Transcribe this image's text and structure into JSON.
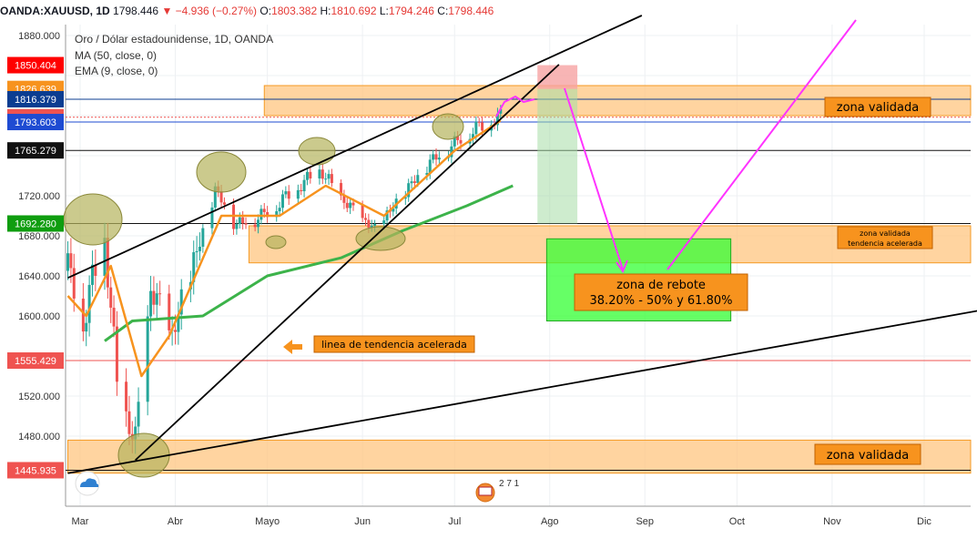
{
  "header": {
    "symbol": "OANDA:XAUUSD, 1D",
    "last": "1798.446",
    "change": "▼ −4.936 (−0.27%)",
    "o_label": "O:",
    "o": "1803.382",
    "h_label": "H:",
    "h": "1810.692",
    "l_label": "L:",
    "l": "1794.246",
    "c_label": "C:",
    "c": "1798.446"
  },
  "legend": {
    "title": "Oro / Dólar estadounidense, 1D, OANDA",
    "ma": "MA (50, close, 0)",
    "ema": "EMA (9, close, 0)"
  },
  "colors": {
    "up": "#26a69a",
    "down": "#ef5350",
    "ema": "#f7931e",
    "ma": "#3cb34a",
    "zone_fill": "#ffc680",
    "zone_border": "#f59a23",
    "box_fill": "#33ff33",
    "pink": "#ff33ff",
    "ellipse": "#b5b35c"
  },
  "badges": [
    {
      "value": "1850.404",
      "color": "#ff0000"
    },
    {
      "value": "1826.639",
      "color": "#f7931e"
    },
    {
      "value": "1816.379",
      "color": "#0b3d91"
    },
    {
      "value": "1798.446",
      "color": "#ef5350"
    },
    {
      "value": "1793.603",
      "color": "#1e4bd2"
    },
    {
      "value": "1765.279",
      "color": "#111111"
    },
    {
      "value": "1692.280",
      "color": "#0f9d0f"
    },
    {
      "value": "1555.429",
      "color": "#ef5350"
    },
    {
      "value": "1445.935",
      "color": "#ef5350"
    }
  ],
  "annotations": {
    "zona_validada_top": "zona validada",
    "zona_validada_mid_1": "zona validada",
    "zona_validada_mid_2": "tendencia acelerada",
    "zona_validada_bottom": "zona validada",
    "linea": "linea de tendencia acelerada",
    "rebote_1": "zona de rebote",
    "rebote_2": "38.20% - 50% y 61.80%",
    "event_count": "2 7 1"
  },
  "chart_data": {
    "type": "candlestick",
    "title": "Oro / Dólar estadounidense, 1D, OANDA",
    "ylim": [
      1420,
      1900
    ],
    "yticks": [
      1480,
      1520,
      1560,
      1600,
      1640,
      1680,
      1720,
      1760,
      1800,
      1840,
      1880
    ],
    "ytick_labels": [
      "1480.000",
      "1520.000",
      "",
      "1600.000",
      "1640.000",
      "1680.000",
      "1720.000",
      "",
      "",
      "",
      "1880.000"
    ],
    "x_months": [
      "Mar",
      "Abr",
      "Mayo",
      "Jun",
      "Jul",
      "Ago",
      "Sep",
      "Oct",
      "Nov",
      "Dic"
    ],
    "close_path": [
      {
        "date": "2020-02-26",
        "close": 1645
      },
      {
        "date": "2020-03-02",
        "close": 1595
      },
      {
        "date": "2020-03-09",
        "close": 1680
      },
      {
        "date": "2020-03-13",
        "close": 1530
      },
      {
        "date": "2020-03-19",
        "close": 1471
      },
      {
        "date": "2020-03-24",
        "close": 1625
      },
      {
        "date": "2020-03-31",
        "close": 1578
      },
      {
        "date": "2020-04-14",
        "close": 1725
      },
      {
        "date": "2020-04-21",
        "close": 1690
      },
      {
        "date": "2020-04-30",
        "close": 1700
      },
      {
        "date": "2020-05-18",
        "close": 1745
      },
      {
        "date": "2020-05-27",
        "close": 1710
      },
      {
        "date": "2020-06-05",
        "close": 1685
      },
      {
        "date": "2020-06-22",
        "close": 1750
      },
      {
        "date": "2020-07-06",
        "close": 1783
      },
      {
        "date": "2020-07-16",
        "close": 1798.446
      }
    ],
    "series": [
      {
        "name": "MA (50, close, 0)",
        "points": [
          {
            "date": "2020-03-09",
            "value": 1575
          },
          {
            "date": "2020-03-18",
            "value": 1595
          },
          {
            "date": "2020-04-10",
            "value": 1600
          },
          {
            "date": "2020-05-01",
            "value": 1640
          },
          {
            "date": "2020-05-25",
            "value": 1658
          },
          {
            "date": "2020-06-14",
            "value": 1685
          },
          {
            "date": "2020-07-05",
            "value": 1710
          },
          {
            "date": "2020-07-20",
            "value": 1730
          }
        ]
      },
      {
        "name": "EMA (9, close, 0)",
        "points": [
          {
            "date": "2020-02-26",
            "value": 1620
          },
          {
            "date": "2020-03-03",
            "value": 1600
          },
          {
            "date": "2020-03-11",
            "value": 1650
          },
          {
            "date": "2020-03-21",
            "value": 1540
          },
          {
            "date": "2020-03-30",
            "value": 1580
          },
          {
            "date": "2020-04-16",
            "value": 1700
          },
          {
            "date": "2020-05-05",
            "value": 1700
          },
          {
            "date": "2020-05-20",
            "value": 1730
          },
          {
            "date": "2020-06-08",
            "value": 1700
          },
          {
            "date": "2020-07-01",
            "value": 1765
          },
          {
            "date": "2020-07-16",
            "value": 1795
          }
        ]
      }
    ],
    "zones": [
      {
        "from": "2020-04-30",
        "to": "2020-12-31",
        "low": 1800,
        "high": 1830,
        "label": "zona validada"
      },
      {
        "from": "2020-04-25",
        "to": "2020-12-31",
        "low": 1653,
        "high": 1690,
        "label": "zona validada tendencia acelerada"
      },
      {
        "from": "2020-02-26",
        "to": "2020-12-31",
        "low": 1443,
        "high": 1476,
        "label": "zona validada"
      }
    ],
    "rebound_box": {
      "from": "2020-07-31",
      "to": "2020-09-29",
      "low": 1595,
      "high": 1677,
      "label": "zona de rebote 38.20% - 50% y 61.80%"
    },
    "horizontal_lines": [
      1850.404,
      1816.379,
      1793.603,
      1765.279,
      1692.28,
      1555.429,
      1445.935
    ],
    "trendlines": [
      {
        "name": "upper channel",
        "from": {
          "date": "2020-02-26",
          "value": 1638
        },
        "to": {
          "date": "2020-08-31",
          "value": 1900
        }
      },
      {
        "name": "linea de tendencia acelerada",
        "from": {
          "date": "2020-03-19",
          "value": 1456
        },
        "to": {
          "date": "2020-08-04",
          "value": 1851
        }
      },
      {
        "name": "lower channel",
        "from": {
          "date": "2020-02-26",
          "value": 1443
        },
        "to": {
          "date": "2020-12-31",
          "value": 1612
        }
      }
    ],
    "projection": {
      "entry": 1850.404,
      "target": 1692.28,
      "stop": 1826.639
    }
  }
}
